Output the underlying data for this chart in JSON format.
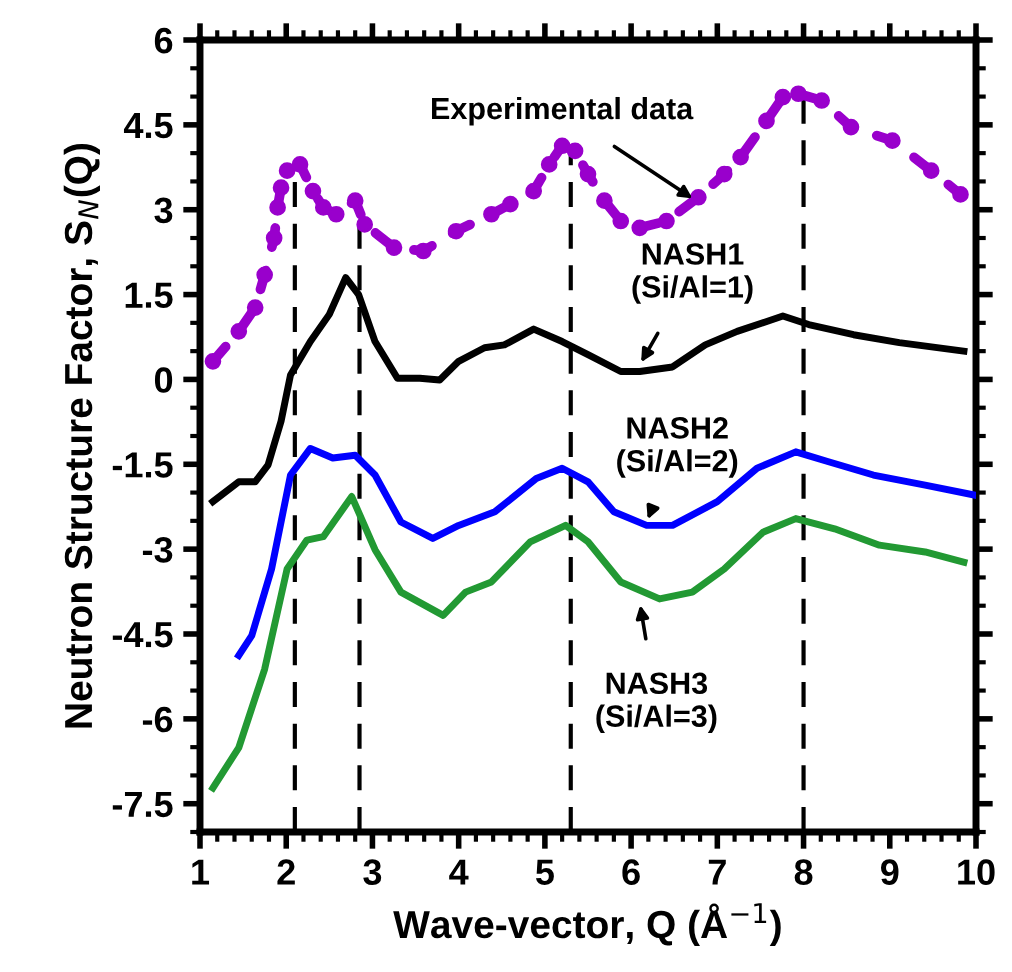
{
  "chart_data": {
    "type": "line",
    "xlabel": "Wave-vector, Q (Å$^{−1}$)",
    "ylabel": "Neutron Structure Factor, S$_{N}$(Q)",
    "xlim": [
      1,
      10
    ],
    "xticks": [
      1,
      2,
      3,
      4,
      5,
      6,
      7,
      8,
      9,
      10
    ],
    "ylim": [
      -8,
      6
    ],
    "yticks": [
      6,
      4.5,
      3,
      1.5,
      0,
      -1.5,
      -3,
      -4.5,
      -6,
      -7.5
    ],
    "grid": false,
    "legend": false,
    "series": [
      {
        "color": "#9900cc",
        "marker": "circle",
        "line_style": "dotted",
        "x": [
          1.15,
          1.45,
          1.64,
          1.75,
          1.86,
          1.9,
          1.94,
          2.01,
          2.16,
          2.31,
          2.43,
          2.58,
          2.8,
          2.91,
          3.25,
          3.59,
          3.97,
          4.38,
          4.6,
          4.87,
          5.05,
          5.2,
          5.35,
          5.5,
          5.69,
          5.88,
          6.1,
          6.41,
          6.78,
          7.08,
          7.27,
          7.57,
          7.76,
          7.94,
          8.21,
          8.55,
          9.03,
          9.48,
          9.82
        ],
        "values": [
          0.32,
          0.85,
          1.27,
          1.85,
          2.5,
          3.04,
          3.39,
          3.69,
          3.8,
          3.33,
          3.04,
          2.92,
          3.16,
          2.74,
          2.33,
          2.27,
          2.62,
          2.92,
          3.1,
          3.33,
          3.8,
          4.13,
          4.04,
          3.63,
          3.16,
          2.8,
          2.68,
          2.8,
          3.22,
          3.63,
          3.93,
          4.57,
          4.99,
          5.05,
          4.93,
          4.46,
          4.22,
          3.69,
          3.27
        ]
      },
      {
        "color": "#000000",
        "marker": "none",
        "line_style": "solid",
        "x": [
          1.15,
          1.45,
          1.64,
          1.79,
          1.94,
          2.05,
          2.28,
          2.5,
          2.69,
          2.84,
          3.03,
          3.29,
          3.55,
          3.78,
          4.0,
          4.3,
          4.53,
          4.87,
          5.2,
          5.5,
          5.88,
          6.1,
          6.48,
          6.86,
          7.23,
          7.76,
          8.06,
          8.58,
          9.11,
          9.86
        ],
        "values": [
          -2.16,
          -1.81,
          -1.81,
          -1.51,
          -0.74,
          0.08,
          0.67,
          1.15,
          1.8,
          1.5,
          0.67,
          0.02,
          0.02,
          -0.01,
          0.32,
          0.56,
          0.61,
          0.89,
          0.67,
          0.44,
          0.14,
          0.14,
          0.22,
          0.61,
          0.85,
          1.12,
          0.97,
          0.79,
          0.65,
          0.5
        ]
      },
      {
        "color": "#0000ff",
        "marker": "none",
        "line_style": "solid",
        "x": [
          1.45,
          1.6,
          1.83,
          2.05,
          2.28,
          2.54,
          2.8,
          3.03,
          3.33,
          3.7,
          4.0,
          4.42,
          4.9,
          5.2,
          5.5,
          5.8,
          6.18,
          6.48,
          7.0,
          7.46,
          7.91,
          8.28,
          8.81,
          9.41,
          10
        ],
        "values": [
          -4.88,
          -4.53,
          -3.35,
          -1.69,
          -1.22,
          -1.39,
          -1.34,
          -1.69,
          -2.52,
          -2.81,
          -2.58,
          -2.34,
          -1.75,
          -1.57,
          -1.81,
          -2.34,
          -2.58,
          -2.58,
          -2.16,
          -1.57,
          -1.28,
          -1.45,
          -1.69,
          -1.87,
          -2.05
        ]
      },
      {
        "color": "#229933",
        "marker": "none",
        "line_style": "solid",
        "x": [
          1.15,
          1.45,
          1.75,
          2.01,
          2.24,
          2.43,
          2.76,
          3.03,
          3.33,
          3.82,
          4.08,
          4.38,
          4.83,
          5.24,
          5.5,
          5.88,
          6.33,
          6.71,
          7.08,
          7.53,
          7.91,
          8.36,
          8.88,
          9.41,
          9.86
        ],
        "values": [
          -7.22,
          -6.51,
          -5.12,
          -3.35,
          -2.84,
          -2.78,
          -2.07,
          -3.01,
          -3.76,
          -4.17,
          -3.76,
          -3.58,
          -2.87,
          -2.58,
          -2.87,
          -3.58,
          -3.88,
          -3.76,
          -3.35,
          -2.7,
          -2.46,
          -2.64,
          -2.93,
          -3.05,
          -3.23
        ]
      }
    ],
    "ref_lines": [
      {
        "axis": "x",
        "value": 2.1,
        "color": "#000000",
        "line_style": "dashed"
      },
      {
        "axis": "x",
        "value": 2.85,
        "color": "#000000",
        "line_style": "dashed"
      },
      {
        "axis": "x",
        "value": 5.3,
        "color": "#000000",
        "line_style": "dashed"
      },
      {
        "axis": "x",
        "value": 8.0,
        "color": "#000000",
        "line_style": "dashed"
      }
    ],
    "annotations": [
      {
        "text": "Experimental data",
        "x": 6.74,
        "y": 3.17
      },
      {
        "text": "NASH1\n(Si/Al=1)",
        "x": 6.1,
        "y": 0.26
      },
      {
        "text": "NASH2\n(Si/Al=2)",
        "x": 6.18,
        "y": -2.52
      },
      {
        "text": "NASH3\n(Si/Al=3)",
        "x": 6.1,
        "y": -3.94
      }
    ]
  }
}
